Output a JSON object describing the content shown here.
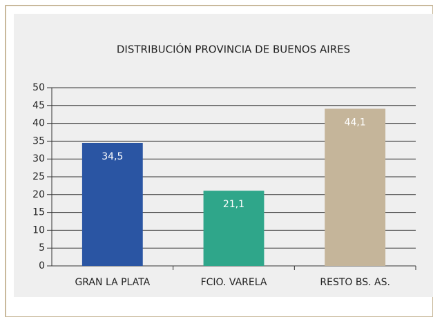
{
  "chart_data": {
    "type": "bar",
    "title": "DISTRIBUCIÓN PROVINCIA DE BUENOS AIRES",
    "categories": [
      "GRAN LA PLATA",
      "FCIO. VARELA",
      "RESTO BS. AS."
    ],
    "values": [
      34.5,
      21.1,
      44.1
    ],
    "value_labels": [
      "34,5",
      "21,1",
      "44,1"
    ],
    "colors": [
      "#2a55a3",
      "#2fa68a",
      "#c5b59a"
    ],
    "ylim": [
      0,
      50
    ],
    "yticks": [
      0,
      5,
      10,
      15,
      20,
      25,
      30,
      35,
      40,
      45,
      50
    ],
    "grid": true
  }
}
